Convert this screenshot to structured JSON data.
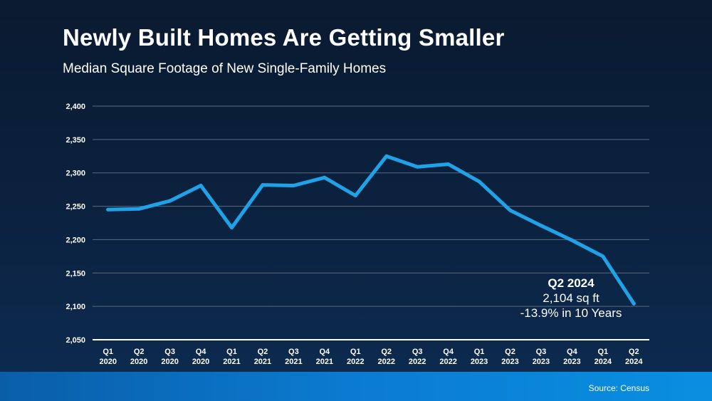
{
  "title": "Newly Built Homes Are Getting Smaller",
  "subtitle": "Median Square Footage of New Single-Family Homes",
  "source": "Source: Census",
  "colors": {
    "line": "#1fa3e8",
    "grid": "#5a6b80",
    "axis": "#ffffff",
    "text": "#ffffff"
  },
  "annotation": {
    "heading": "Q2 2024",
    "line1": "2,104 sq ft",
    "line2": "-13.9% in 10 Years"
  },
  "chart_data": {
    "type": "line",
    "categories": [
      [
        "Q1",
        "2020"
      ],
      [
        "Q2",
        "2020"
      ],
      [
        "Q3",
        "2020"
      ],
      [
        "Q4",
        "2020"
      ],
      [
        "Q1",
        "2021"
      ],
      [
        "Q2",
        "2021"
      ],
      [
        "Q3",
        "2021"
      ],
      [
        "Q4",
        "2021"
      ],
      [
        "Q1",
        "2022"
      ],
      [
        "Q2",
        "2022"
      ],
      [
        "Q3",
        "2022"
      ],
      [
        "Q4",
        "2022"
      ],
      [
        "Q1",
        "2023"
      ],
      [
        "Q2",
        "2023"
      ],
      [
        "Q3",
        "2023"
      ],
      [
        "Q4",
        "2023"
      ],
      [
        "Q1",
        "2024"
      ],
      [
        "Q2",
        "2024"
      ]
    ],
    "values": [
      2245,
      2246,
      2258,
      2281,
      2218,
      2282,
      2281,
      2293,
      2266,
      2325,
      2309,
      2313,
      2287,
      2244,
      2221,
      2199,
      2175,
      2104
    ],
    "ylim": [
      2050,
      2400
    ],
    "yticks": [
      2050,
      2100,
      2150,
      2200,
      2250,
      2300,
      2350,
      2400
    ],
    "ytick_labels": [
      "2,050",
      "2,100",
      "2,150",
      "2,200",
      "2,250",
      "2,300",
      "2,350",
      "2,400"
    ],
    "grid": true
  }
}
